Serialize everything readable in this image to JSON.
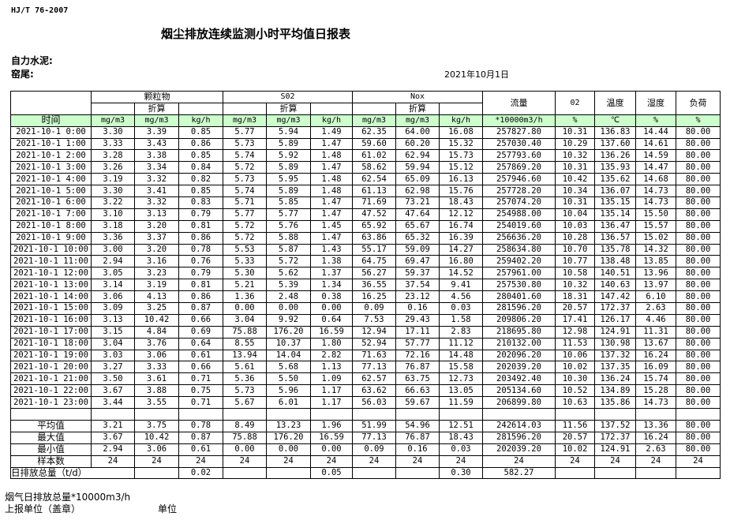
{
  "standard": "HJ/T  76-2007",
  "title": "烟尘排放连续监测小时平均值日报表",
  "plant_label": "自力水泥:",
  "kiln_label": "窑尾:",
  "report_date": "2021年10月1日",
  "header": {
    "particulate": "颗粒物",
    "so2": "S02",
    "nox": "Nox",
    "converted": "折算",
    "flow": "流量",
    "o2": "02",
    "temp": "温度",
    "humidity": "湿度",
    "load": "负荷",
    "time": "时间",
    "units": [
      "mg/m3",
      "mg/m3",
      "kg/h",
      "mg/m3",
      "mg/m3",
      "kg/h",
      "mg/m3",
      "mg/m3",
      "kg/h",
      "*10000m3/h",
      "%",
      "℃",
      "%",
      "%"
    ]
  },
  "colors": {
    "units_row_bg": "#ccffcc"
  },
  "rows": [
    [
      "2021-10-1 0:00",
      "3.30",
      "3.39",
      "0.85",
      "5.77",
      "5.94",
      "1.49",
      "62.35",
      "64.00",
      "16.08",
      "257827.80",
      "10.31",
      "136.83",
      "14.44",
      "80.00"
    ],
    [
      "2021-10-1 1:00",
      "3.33",
      "3.43",
      "0.86",
      "5.73",
      "5.89",
      "1.47",
      "59.60",
      "60.20",
      "15.32",
      "257030.40",
      "10.29",
      "137.60",
      "14.61",
      "80.00"
    ],
    [
      "2021-10-1 2:00",
      "3.28",
      "3.38",
      "0.85",
      "5.74",
      "5.92",
      "1.48",
      "61.02",
      "62.94",
      "15.73",
      "257793.60",
      "10.32",
      "136.26",
      "14.59",
      "80.00"
    ],
    [
      "2021-10-1 3:00",
      "3.26",
      "3.34",
      "0.84",
      "5.72",
      "5.89",
      "1.47",
      "58.62",
      "59.94",
      "15.12",
      "257869.20",
      "10.31",
      "135.93",
      "14.47",
      "80.00"
    ],
    [
      "2021-10-1 4:00",
      "3.19",
      "3.32",
      "0.82",
      "5.73",
      "5.95",
      "1.48",
      "62.54",
      "65.09",
      "16.13",
      "257946.60",
      "10.42",
      "135.62",
      "14.68",
      "80.00"
    ],
    [
      "2021-10-1 5:00",
      "3.30",
      "3.41",
      "0.85",
      "5.74",
      "5.89",
      "1.48",
      "61.13",
      "62.98",
      "15.76",
      "257728.20",
      "10.34",
      "136.07",
      "14.73",
      "80.00"
    ],
    [
      "2021-10-1 6:00",
      "3.22",
      "3.32",
      "0.83",
      "5.71",
      "5.85",
      "1.47",
      "71.69",
      "73.21",
      "18.43",
      "257074.20",
      "10.31",
      "135.15",
      "14.73",
      "80.00"
    ],
    [
      "2021-10-1 7:00",
      "3.10",
      "3.13",
      "0.79",
      "5.77",
      "5.77",
      "1.47",
      "47.52",
      "47.64",
      "12.12",
      "254988.00",
      "10.04",
      "135.14",
      "15.50",
      "80.00"
    ],
    [
      "2021-10-1 8:00",
      "3.18",
      "3.20",
      "0.81",
      "5.72",
      "5.76",
      "1.45",
      "65.92",
      "65.67",
      "16.74",
      "254019.60",
      "10.03",
      "136.47",
      "15.57",
      "80.00"
    ],
    [
      "2021-10-1 9:00",
      "3.36",
      "3.37",
      "0.86",
      "5.72",
      "5.88",
      "1.47",
      "63.86",
      "65.32",
      "16.39",
      "256636.20",
      "10.28",
      "136.57",
      "15.02",
      "80.00"
    ],
    [
      "2021-10-1 10:00",
      "3.00",
      "3.20",
      "0.78",
      "5.53",
      "5.87",
      "1.43",
      "55.17",
      "59.09",
      "14.27",
      "258634.80",
      "10.70",
      "135.78",
      "14.32",
      "80.00"
    ],
    [
      "2021-10-1 11:00",
      "2.94",
      "3.16",
      "0.76",
      "5.33",
      "5.72",
      "1.38",
      "64.75",
      "69.47",
      "16.80",
      "259402.20",
      "10.77",
      "138.48",
      "13.85",
      "80.00"
    ],
    [
      "2021-10-1 12:00",
      "3.05",
      "3.23",
      "0.79",
      "5.30",
      "5.62",
      "1.37",
      "56.27",
      "59.37",
      "14.52",
      "257961.00",
      "10.58",
      "140.51",
      "13.96",
      "80.00"
    ],
    [
      "2021-10-1 13:00",
      "3.14",
      "3.19",
      "0.81",
      "5.21",
      "5.39",
      "1.34",
      "36.55",
      "37.54",
      "9.41",
      "257530.80",
      "10.32",
      "140.63",
      "13.97",
      "80.00"
    ],
    [
      "2021-10-1 14:00",
      "3.06",
      "4.13",
      "0.86",
      "1.36",
      "2.48",
      "0.38",
      "16.25",
      "23.12",
      "4.56",
      "280401.60",
      "18.31",
      "147.42",
      "6.10",
      "80.00"
    ],
    [
      "2021-10-1 15:00",
      "3.09",
      "3.25",
      "0.87",
      "0.00",
      "0.00",
      "0.00",
      "0.09",
      "0.16",
      "0.03",
      "281596.20",
      "20.57",
      "172.37",
      "2.63",
      "80.00"
    ],
    [
      "2021-10-1 16:00",
      "3.13",
      "10.42",
      "0.66",
      "3.04",
      "9.92",
      "0.64",
      "7.53",
      "29.43",
      "1.58",
      "209806.20",
      "17.41",
      "126.17",
      "4.46",
      "80.00"
    ],
    [
      "2021-10-1 17:00",
      "3.15",
      "4.84",
      "0.69",
      "75.88",
      "176.20",
      "16.59",
      "12.94",
      "17.11",
      "2.83",
      "218695.80",
      "12.98",
      "124.91",
      "11.31",
      "80.00"
    ],
    [
      "2021-10-1 18:00",
      "3.04",
      "3.76",
      "0.64",
      "8.55",
      "10.37",
      "1.80",
      "52.94",
      "57.77",
      "11.12",
      "210132.00",
      "11.53",
      "130.98",
      "13.67",
      "80.00"
    ],
    [
      "2021-10-1 19:00",
      "3.03",
      "3.06",
      "0.61",
      "13.94",
      "14.04",
      "2.82",
      "71.63",
      "72.16",
      "14.48",
      "202096.20",
      "10.06",
      "137.32",
      "16.24",
      "80.00"
    ],
    [
      "2021-10-1 20:00",
      "3.27",
      "3.33",
      "0.66",
      "5.61",
      "5.68",
      "1.13",
      "77.13",
      "76.87",
      "15.58",
      "202039.20",
      "10.02",
      "137.35",
      "16.09",
      "80.00"
    ],
    [
      "2021-10-1 21:00",
      "3.50",
      "3.61",
      "0.71",
      "5.36",
      "5.50",
      "1.09",
      "62.57",
      "63.75",
      "12.73",
      "203492.40",
      "10.30",
      "136.24",
      "15.74",
      "80.00"
    ],
    [
      "2021-10-1 22:00",
      "3.67",
      "3.88",
      "0.75",
      "5.73",
      "5.96",
      "1.17",
      "63.62",
      "66.63",
      "13.05",
      "205134.60",
      "10.52",
      "134.89",
      "15.28",
      "80.00"
    ],
    [
      "2021-10-1 23:00",
      "3.44",
      "3.55",
      "0.71",
      "5.67",
      "6.01",
      "1.17",
      "56.03",
      "59.67",
      "11.59",
      "206899.80",
      "10.63",
      "135.86",
      "14.73",
      "80.00"
    ]
  ],
  "summary": [
    [
      "平均值",
      "3.21",
      "3.75",
      "0.78",
      "8.49",
      "13.23",
      "1.96",
      "51.99",
      "54.96",
      "12.51",
      "242614.03",
      "11.56",
      "137.52",
      "13.36",
      "80.00"
    ],
    [
      "最大值",
      "3.67",
      "10.42",
      "0.87",
      "75.88",
      "176.20",
      "16.59",
      "77.13",
      "76.87",
      "18.43",
      "281596.20",
      "20.57",
      "172.37",
      "16.24",
      "80.00"
    ],
    [
      "最小值",
      "2.94",
      "3.06",
      "0.61",
      "0.00",
      "0.00",
      "0.00",
      "0.09",
      "0.16",
      "0.03",
      "202039.20",
      "10.02",
      "124.91",
      "2.63",
      "80.00"
    ],
    [
      "样本数",
      "24",
      "24",
      "24",
      "24",
      "24",
      "24",
      "24",
      "24",
      "24",
      "24",
      "24",
      "24",
      "24",
      "24"
    ]
  ],
  "daily_total": {
    "label": "日排放总量（t/d）",
    "values": [
      "",
      "0.02",
      "",
      "",
      "0.05",
      "",
      "",
      "0.30",
      "582.27",
      "",
      "",
      "",
      ""
    ]
  },
  "footer": {
    "flue_gas_total": "烟气日排放总量*10000m3/h",
    "reporting_unit": "上报单位（盖章）",
    "unit": "单位"
  }
}
